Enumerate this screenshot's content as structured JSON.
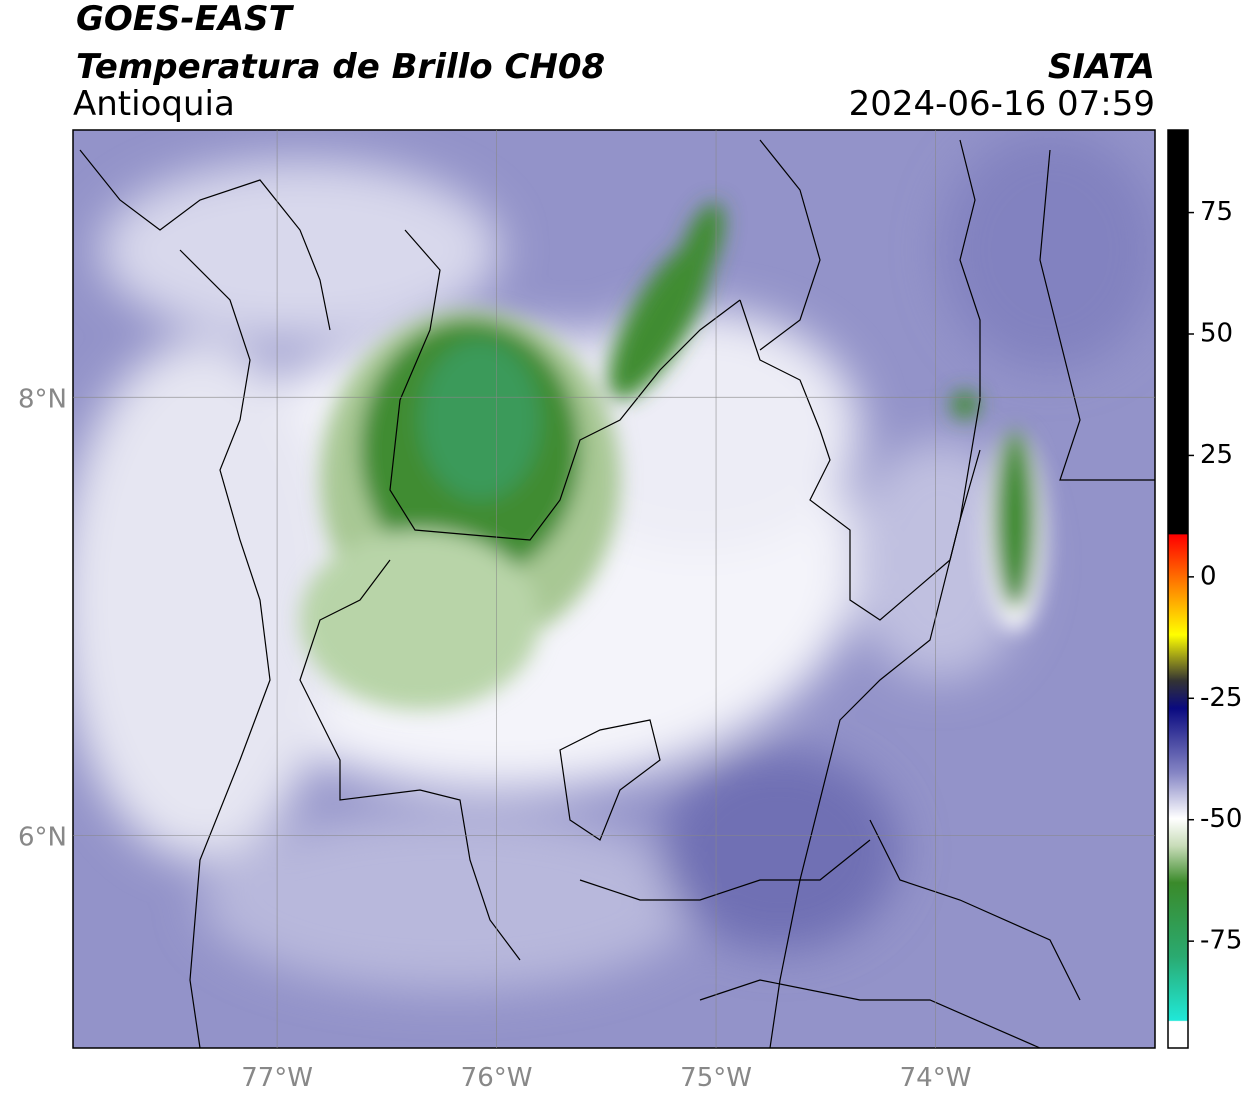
{
  "header": {
    "title": "GOES-EAST",
    "subtitle": "Temperatura de Brillo CH08",
    "region": "Antioquia",
    "source": "SIATA",
    "timestamp": "2024-06-16 07:59"
  },
  "map": {
    "xlim": [
      -77.93,
      -73.0
    ],
    "ylim": [
      5.03,
      9.22
    ],
    "xticks": [
      {
        "value": -77,
        "label": "77°W"
      },
      {
        "value": -76,
        "label": "76°W"
      },
      {
        "value": -75,
        "label": "75°W"
      },
      {
        "value": -74,
        "label": "74°W"
      }
    ],
    "yticks": [
      {
        "value": 8,
        "label": "8°N"
      },
      {
        "value": 6,
        "label": "6°N"
      }
    ],
    "grid": true
  },
  "colorbar": {
    "lim": [
      -97,
      92
    ],
    "ticks": [
      75,
      50,
      25,
      0,
      -25,
      -50,
      -75
    ]
  }
}
